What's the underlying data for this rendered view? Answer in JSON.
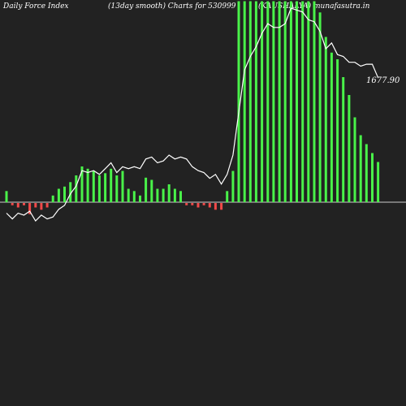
{
  "header": {
    "left": "Daily Force  Index",
    "middle": "(13day smooth) Charts for 530999",
    "right": "(KAUSHALYA) munafasutra.in"
  },
  "chart_data": {
    "type": "bar",
    "title": "Daily Force  Index (13day smooth) Charts for 530999",
    "colors": {
      "positive": "#49f249",
      "negative": "#f24949",
      "line": "#ffffff",
      "zero_line": "#cccccc",
      "background": "#222222"
    },
    "ylim": [
      -1.0,
      9.0
    ],
    "values": [
      0.5,
      -0.1,
      -0.2,
      -0.1,
      -0.5,
      -0.2,
      -0.3,
      -0.2,
      0.3,
      0.6,
      0.7,
      0.9,
      1.2,
      1.6,
      1.5,
      1.4,
      1.2,
      1.3,
      1.5,
      1.2,
      1.4,
      0.6,
      0.5,
      0.3,
      1.1,
      1.0,
      0.6,
      0.6,
      0.8,
      0.6,
      0.5,
      -0.1,
      -0.1,
      -0.2,
      -0.1,
      -0.2,
      -0.3,
      -0.3,
      0.5,
      1.4,
      9.0,
      9.0,
      9.0,
      9.0,
      9.0,
      9.0,
      9.0,
      9.0,
      9.0,
      9.0,
      9.0,
      9.0,
      9.0,
      9.0,
      8.5,
      7.4,
      6.7,
      6.4,
      5.6,
      4.8,
      3.8,
      3.0,
      2.6,
      2.2,
      1.8
    ],
    "price_line": [
      2480,
      2450,
      2480,
      2470,
      2490,
      2440,
      2470,
      2450,
      2460,
      2500,
      2520,
      2580,
      2620,
      2700,
      2690,
      2700,
      2680,
      2710,
      2740,
      2690,
      2720,
      2710,
      2720,
      2710,
      2760,
      2770,
      2740,
      2750,
      2780,
      2760,
      2770,
      2760,
      2720,
      2700,
      2690,
      2660,
      2680,
      2630,
      2680,
      2780,
      3000,
      3220,
      3290,
      3340,
      3410,
      3460,
      3440,
      3440,
      3460,
      3540,
      3530,
      3520,
      3480,
      3470,
      3420,
      3330,
      3360,
      3300,
      3290,
      3260,
      3260,
      3240,
      3250,
      3250,
      3180
    ],
    "last_price_label": "1677.90"
  }
}
